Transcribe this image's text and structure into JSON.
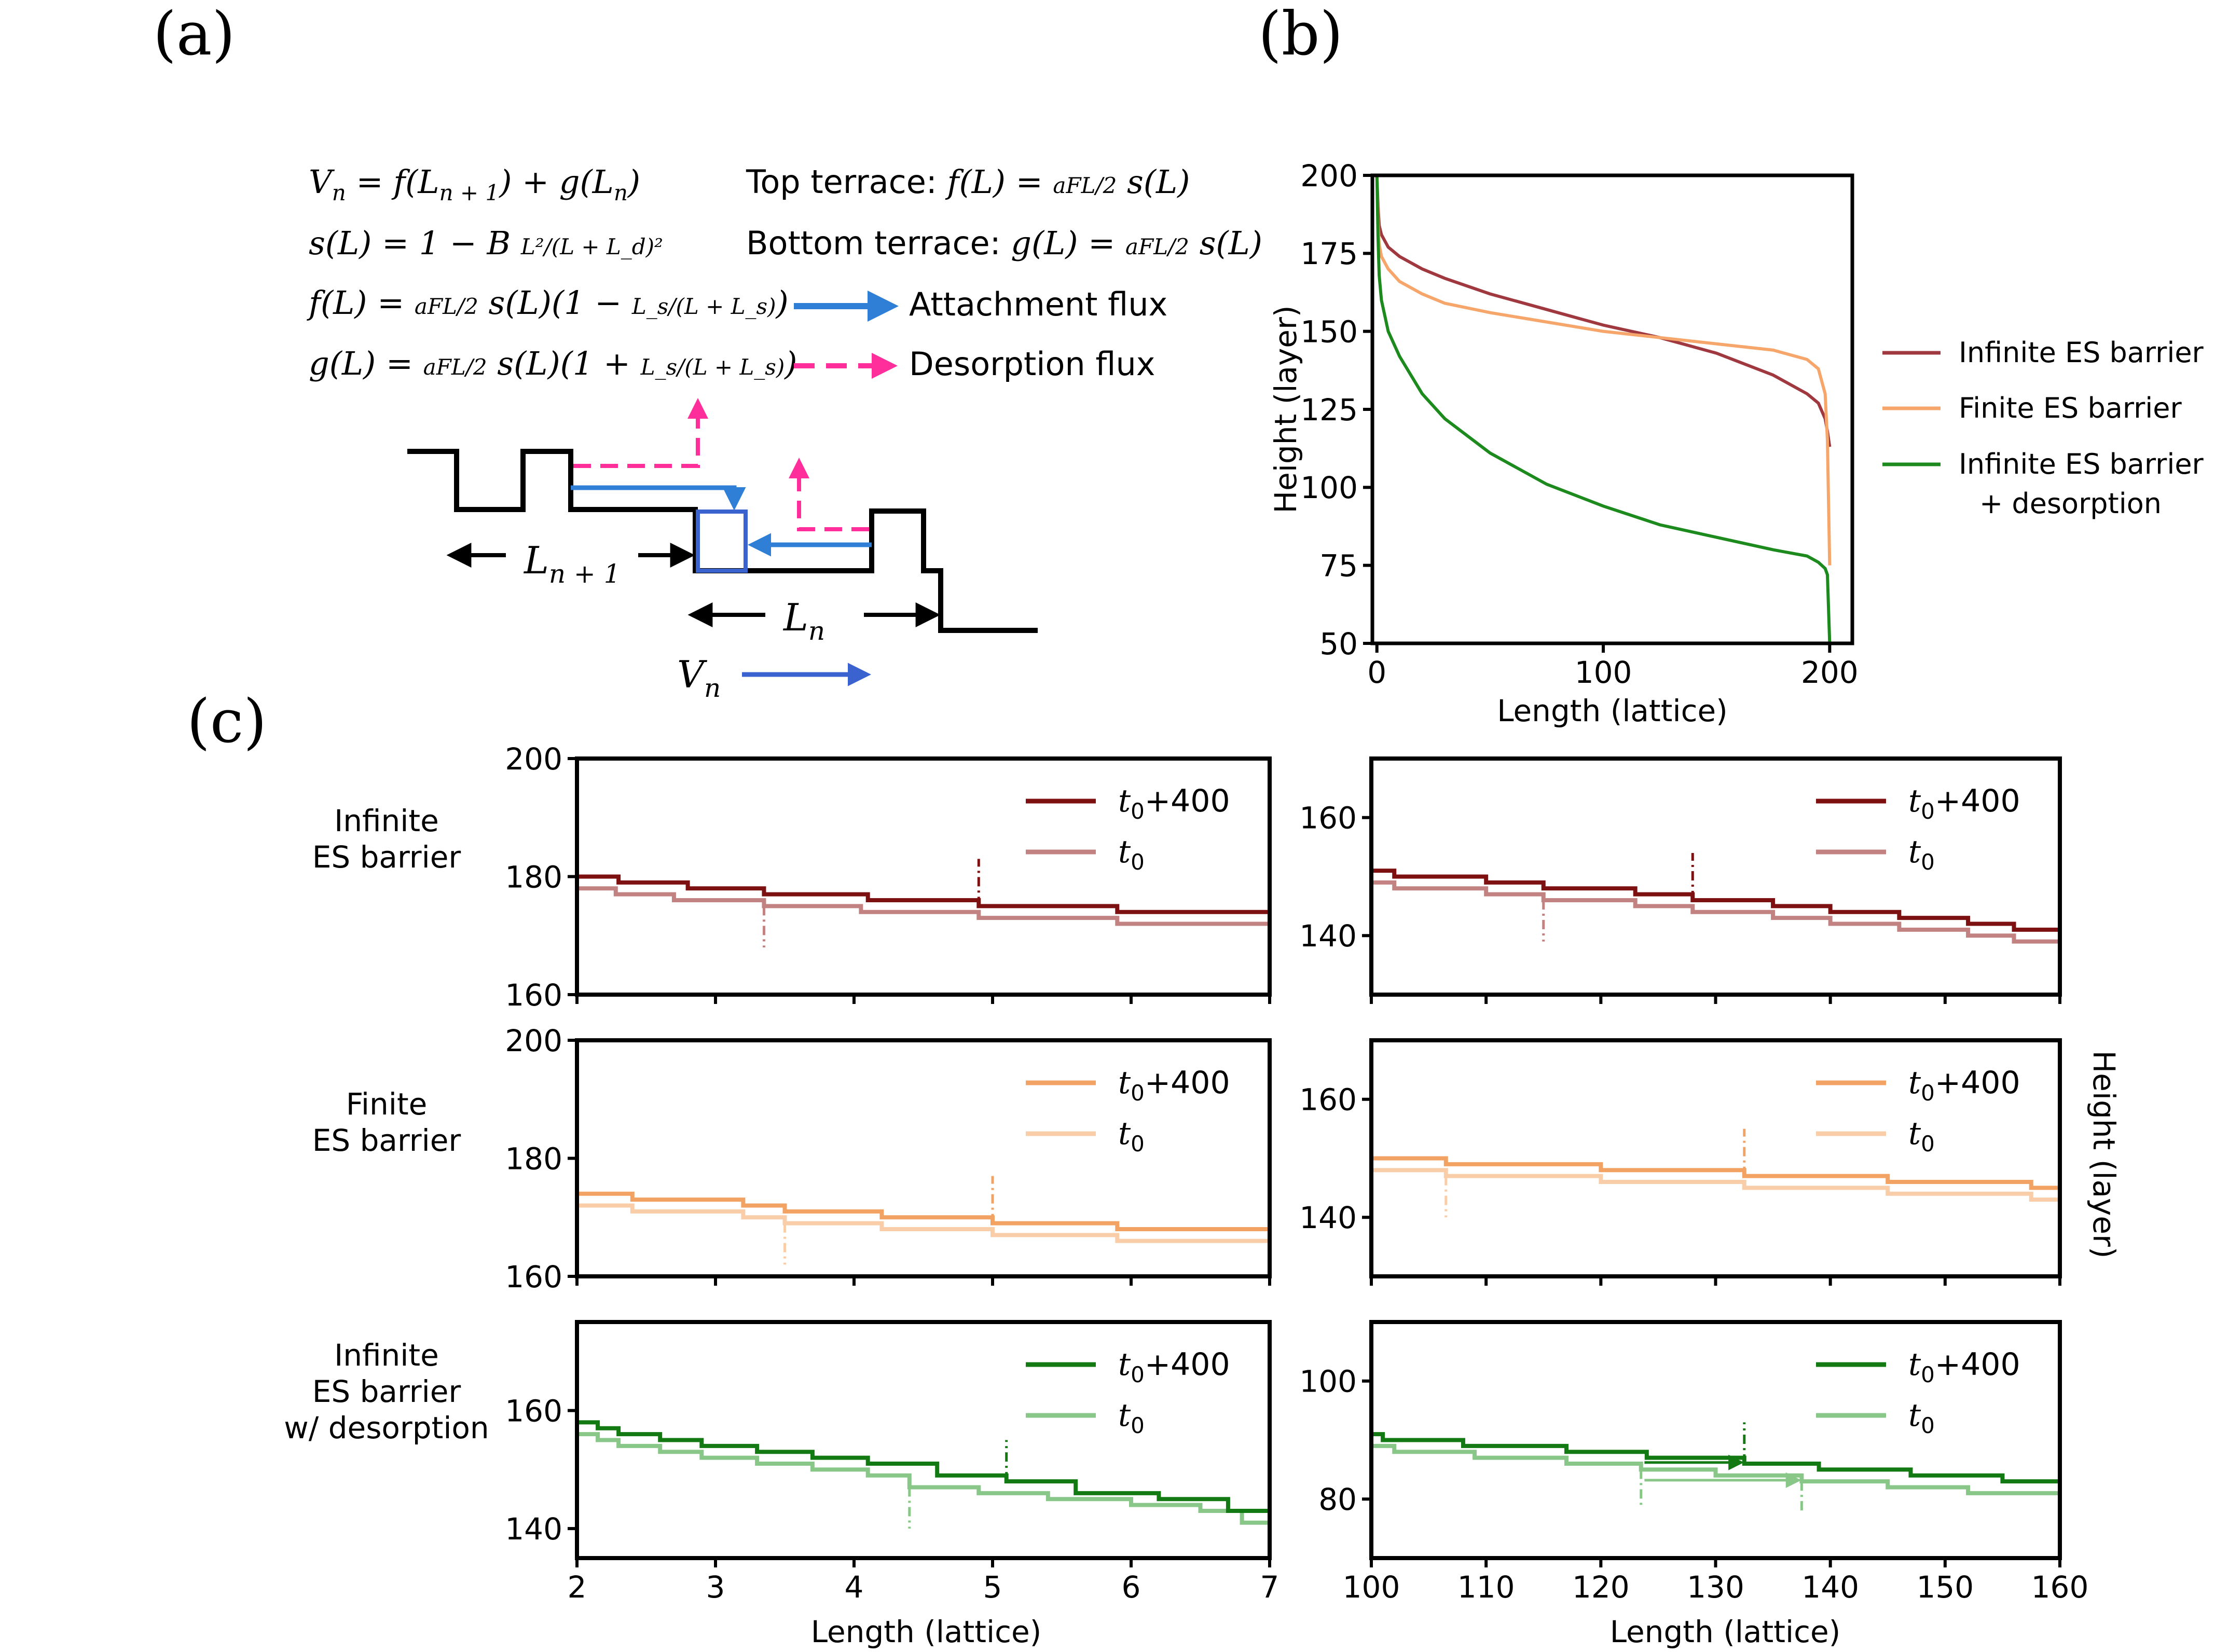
{
  "panel_labels": {
    "a": "(a)",
    "b": "(b)",
    "c": "(c)"
  },
  "schematic": {
    "eq_vn": "V_n = f(L_{n+1}) + g(L_n)",
    "eq_sl": "s(L) = 1 − B L²/(L + L_d)²",
    "eq_fl": "f(L) = (aFL/2) s(L)(1 − L_s/(L + L_s))",
    "eq_gl": "g(L) = (aFL/2) s(L)(1 + L_s/(L + L_s))",
    "top_terrace": "Top terrace: f(L) = (aFL/2) s(L)",
    "bottom_terrace": "Bottom terrace: g(L) = (aFL/2) s(L)",
    "attachment_flux": "Attachment flux",
    "desorption_flux": "Desorption flux",
    "label_ln1": "L",
    "label_ln1_sub": "n + 1",
    "label_ln": "L",
    "label_ln_sub": "n",
    "label_vn": "V",
    "label_vn_sub": "n",
    "colors": {
      "attachment": "#2f7fd6",
      "desorption": "#ff2e9a",
      "box": "#3a63d0",
      "vn_arrow": "#3a63d0"
    }
  },
  "row_labels": [
    [
      "Infinite",
      "ES barrier"
    ],
    [
      "Finite",
      "ES barrier"
    ],
    [
      "Infinite",
      "ES barrier",
      "w/ desorption"
    ]
  ],
  "right_ylabel": "Height (layer)",
  "chart_data": [
    {
      "id": "b",
      "type": "line",
      "xlabel": "Length (lattice)",
      "ylabel": "Height (layer)",
      "xlim": [
        -2,
        210
      ],
      "ylim": [
        50,
        200
      ],
      "xticks": [
        0,
        100,
        200
      ],
      "yticks": [
        50,
        75,
        100,
        125,
        150,
        175,
        200
      ],
      "legend_position": "right",
      "series": [
        {
          "name": "Infinite ES barrier",
          "color": "#a0393f",
          "x": [
            0,
            0.5,
            1,
            2,
            5,
            10,
            20,
            30,
            50,
            75,
            100,
            125,
            150,
            175,
            190,
            195,
            198,
            199,
            200
          ],
          "y": [
            200,
            190,
            184,
            181,
            177,
            174,
            170,
            167,
            162,
            157,
            152,
            148,
            143,
            136,
            130,
            127,
            122,
            118,
            113
          ]
        },
        {
          "name": "Finite ES barrier",
          "color": "#f6a66a",
          "x": [
            0,
            0.5,
            1,
            2,
            5,
            10,
            20,
            30,
            50,
            75,
            100,
            125,
            150,
            175,
            190,
            195,
            198,
            199,
            200
          ],
          "y": [
            200,
            185,
            178,
            174,
            170,
            166,
            162,
            159,
            156,
            153,
            150,
            148,
            146,
            144,
            141,
            138,
            130,
            115,
            75
          ]
        },
        {
          "name": "Infinite ES barrier\n+ desorption",
          "color": "#1d8a1d",
          "x": [
            0,
            0.5,
            1,
            2,
            5,
            10,
            20,
            30,
            50,
            75,
            100,
            125,
            150,
            175,
            190,
            195,
            198,
            199,
            200
          ],
          "y": [
            200,
            180,
            168,
            160,
            150,
            142,
            130,
            122,
            111,
            101,
            94,
            88,
            84,
            80,
            78,
            76,
            74,
            72,
            50
          ]
        }
      ]
    },
    {
      "id": "c-1-left",
      "type": "line",
      "xlim": [
        2,
        7
      ],
      "ylim": [
        160,
        200
      ],
      "xticks": [
        2,
        3,
        4,
        5,
        6,
        7
      ],
      "yticks": [
        160,
        180,
        200
      ],
      "series": [
        {
          "name": "t0+400",
          "color": "#7d1111",
          "x": [
            2,
            2.3,
            2.8,
            3.35,
            4.1,
            4.9,
            5.9,
            7
          ],
          "y": [
            180,
            179,
            178,
            177,
            176,
            175,
            174,
            174
          ]
        },
        {
          "name": "t0",
          "color": "#c28282",
          "x": [
            2,
            2.28,
            2.7,
            3.35,
            4.05,
            4.9,
            5.9,
            7
          ],
          "y": [
            178,
            177,
            176,
            175,
            174,
            173,
            172,
            172
          ]
        }
      ],
      "markers": [
        {
          "x": 4.9,
          "y0": 175,
          "y1": 183,
          "color": "#7d1111"
        },
        {
          "x": 3.35,
          "y0": 175,
          "y1": 168,
          "color": "#c28282"
        }
      ]
    },
    {
      "id": "c-1-right",
      "type": "line",
      "xlim": [
        100,
        160
      ],
      "ylim": [
        130,
        170
      ],
      "xticks": [
        100,
        110,
        120,
        130,
        140,
        150,
        160
      ],
      "yticks": [
        140,
        160
      ],
      "series": [
        {
          "name": "t0+400",
          "color": "#7d1111",
          "x": [
            100,
            102,
            110,
            115,
            123,
            128,
            135,
            140,
            146,
            152,
            156,
            160
          ],
          "y": [
            151,
            150,
            149,
            148,
            147,
            146,
            145,
            144,
            143,
            142,
            141,
            141
          ]
        },
        {
          "name": "t0",
          "color": "#c28282",
          "x": [
            100,
            102,
            110,
            115,
            123,
            128,
            135,
            140,
            146,
            152,
            156,
            160
          ],
          "y": [
            149,
            148,
            147,
            146,
            145,
            144,
            143,
            142,
            141,
            140,
            139,
            139
          ]
        }
      ],
      "markers": [
        {
          "x": 128,
          "y0": 146,
          "y1": 154,
          "color": "#7d1111"
        },
        {
          "x": 115,
          "y0": 146,
          "y1": 139,
          "color": "#c28282"
        }
      ]
    },
    {
      "id": "c-2-left",
      "type": "line",
      "xlim": [
        2,
        7
      ],
      "ylim": [
        160,
        200
      ],
      "xticks": [
        2,
        3,
        4,
        5,
        6,
        7
      ],
      "yticks": [
        160,
        180,
        200
      ],
      "series": [
        {
          "name": "t0+400",
          "color": "#f2a263",
          "x": [
            2,
            2.4,
            3.2,
            3.5,
            4.2,
            5.0,
            5.9,
            7
          ],
          "y": [
            174,
            173,
            172,
            171,
            170,
            169,
            168,
            168
          ]
        },
        {
          "name": "t0",
          "color": "#f8cda8",
          "x": [
            2,
            2.4,
            3.2,
            3.5,
            4.2,
            5.0,
            5.9,
            7
          ],
          "y": [
            172,
            171,
            170,
            169,
            168,
            167,
            166,
            166
          ]
        }
      ],
      "markers": [
        {
          "x": 5.0,
          "y0": 169,
          "y1": 177,
          "color": "#f2a263"
        },
        {
          "x": 3.5,
          "y0": 169,
          "y1": 162,
          "color": "#f8cda8"
        }
      ]
    },
    {
      "id": "c-2-right",
      "type": "line",
      "xlim": [
        100,
        160
      ],
      "ylim": [
        130,
        170
      ],
      "xticks": [
        100,
        110,
        120,
        130,
        140,
        150,
        160
      ],
      "yticks": [
        140,
        160
      ],
      "series": [
        {
          "name": "t0+400",
          "color": "#f2a263",
          "x": [
            100,
            106.5,
            120,
            132.5,
            145,
            157.5,
            160
          ],
          "y": [
            150,
            149,
            148,
            147,
            146,
            145,
            145
          ]
        },
        {
          "name": "t0",
          "color": "#f8cda8",
          "x": [
            100,
            106.5,
            120,
            132.5,
            145,
            157.5,
            160
          ],
          "y": [
            148,
            147,
            146,
            145,
            144,
            143,
            143
          ]
        }
      ],
      "markers": [
        {
          "x": 132.5,
          "y0": 147,
          "y1": 155,
          "color": "#f2a263"
        },
        {
          "x": 106.5,
          "y0": 147,
          "y1": 140,
          "color": "#f8cda8"
        }
      ]
    },
    {
      "id": "c-3-left",
      "type": "line",
      "xlim": [
        2,
        7
      ],
      "ylim": [
        135,
        175
      ],
      "xticks": [
        2,
        3,
        4,
        5,
        6,
        7
      ],
      "yticks": [
        140,
        160
      ],
      "series": [
        {
          "name": "t0+400",
          "color": "#137a13",
          "x": [
            2,
            2.15,
            2.3,
            2.6,
            2.9,
            3.3,
            3.7,
            4.1,
            4.6,
            5.1,
            5.6,
            6.2,
            6.7,
            7
          ],
          "y": [
            158,
            157,
            156,
            155,
            154,
            153,
            152,
            151,
            149,
            148,
            146,
            145,
            143,
            143
          ]
        },
        {
          "name": "t0",
          "color": "#88c788",
          "x": [
            2,
            2.15,
            2.3,
            2.6,
            2.9,
            3.3,
            3.7,
            4.1,
            4.4,
            4.9,
            5.4,
            6.0,
            6.5,
            6.8,
            7
          ],
          "y": [
            156,
            155,
            154,
            153,
            152,
            151,
            150,
            149,
            147,
            146,
            145,
            144,
            143,
            141,
            141
          ]
        }
      ],
      "markers": [
        {
          "x": 5.1,
          "y0": 148,
          "y1": 155,
          "color": "#137a13"
        },
        {
          "x": 4.4,
          "y0": 147,
          "y1": 140,
          "color": "#88c788"
        }
      ]
    },
    {
      "id": "c-3-right",
      "type": "line",
      "xlim": [
        100,
        160
      ],
      "ylim": [
        70,
        110
      ],
      "xticks": [
        100,
        110,
        120,
        130,
        140,
        150,
        160
      ],
      "yticks": [
        80,
        100
      ],
      "series": [
        {
          "name": "t0+400",
          "color": "#137a13",
          "x": [
            100,
            101,
            108,
            117,
            124,
            132.5,
            139,
            147,
            155,
            160
          ],
          "y": [
            91,
            90,
            89,
            88,
            87,
            86,
            85,
            84,
            83,
            82
          ]
        },
        {
          "name": "t0",
          "color": "#88c788",
          "x": [
            100,
            102,
            109,
            117,
            123.5,
            130,
            137.5,
            145,
            152,
            160
          ],
          "y": [
            89,
            88,
            87,
            86,
            85,
            84,
            83,
            82,
            81,
            81
          ]
        }
      ],
      "markers": [
        {
          "x": 132.5,
          "y0": 86,
          "y1": 93,
          "color": "#137a13"
        },
        {
          "x": 123.5,
          "y0": 85,
          "y1": 79,
          "color": "#88c788"
        },
        {
          "x": 137.5,
          "y0": 83,
          "y1": 78,
          "color": "#88c788"
        }
      ],
      "arrows": [
        {
          "x0": 123.8,
          "x1": 132.2,
          "y": 86.2,
          "color": "#137a13"
        },
        {
          "x0": 123.8,
          "x1": 137.2,
          "y": 83.2,
          "color": "#88c788"
        }
      ]
    }
  ],
  "c_xlabel": "Length (lattice)",
  "legend_c": {
    "t400": "+400",
    "t0": "",
    "t_sym": "t",
    "t_sub": "0"
  }
}
